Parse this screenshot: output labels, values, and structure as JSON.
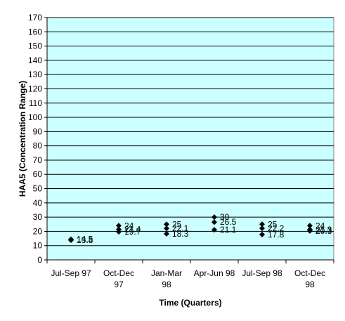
{
  "chart_data": {
    "type": "scatter",
    "title": "",
    "xlabel": "Time (Quarters)",
    "ylabel": "HAA5 (Concentration Range)",
    "ylim": [
      0,
      170
    ],
    "y_tick_step": 10,
    "grid": true,
    "legend": "none",
    "plot_background": "#CCFFFF",
    "gridline_color": "#000000",
    "marker_color": "#000000",
    "marker": "diamond",
    "categories": [
      [
        "Jul-Sep 97"
      ],
      [
        "Oct-Dec",
        "97"
      ],
      [
        "Jan-Mar",
        "98"
      ],
      [
        "Apr-Jun 98"
      ],
      [
        "Jul-Sep 98"
      ],
      [
        "Oct-Dec",
        "98"
      ]
    ],
    "points": [
      {
        "category": 0,
        "values": [
          14.5,
          13.8
        ]
      },
      {
        "category": 1,
        "values": [
          24,
          21.4,
          19.7
        ]
      },
      {
        "category": 2,
        "values": [
          25,
          22.1,
          18.3
        ]
      },
      {
        "category": 3,
        "values": [
          30,
          26.5,
          21.1
        ]
      },
      {
        "category": 4,
        "values": [
          25,
          22.2,
          17.8
        ]
      },
      {
        "category": 5,
        "values": [
          24,
          21.3,
          20.3
        ]
      }
    ]
  }
}
